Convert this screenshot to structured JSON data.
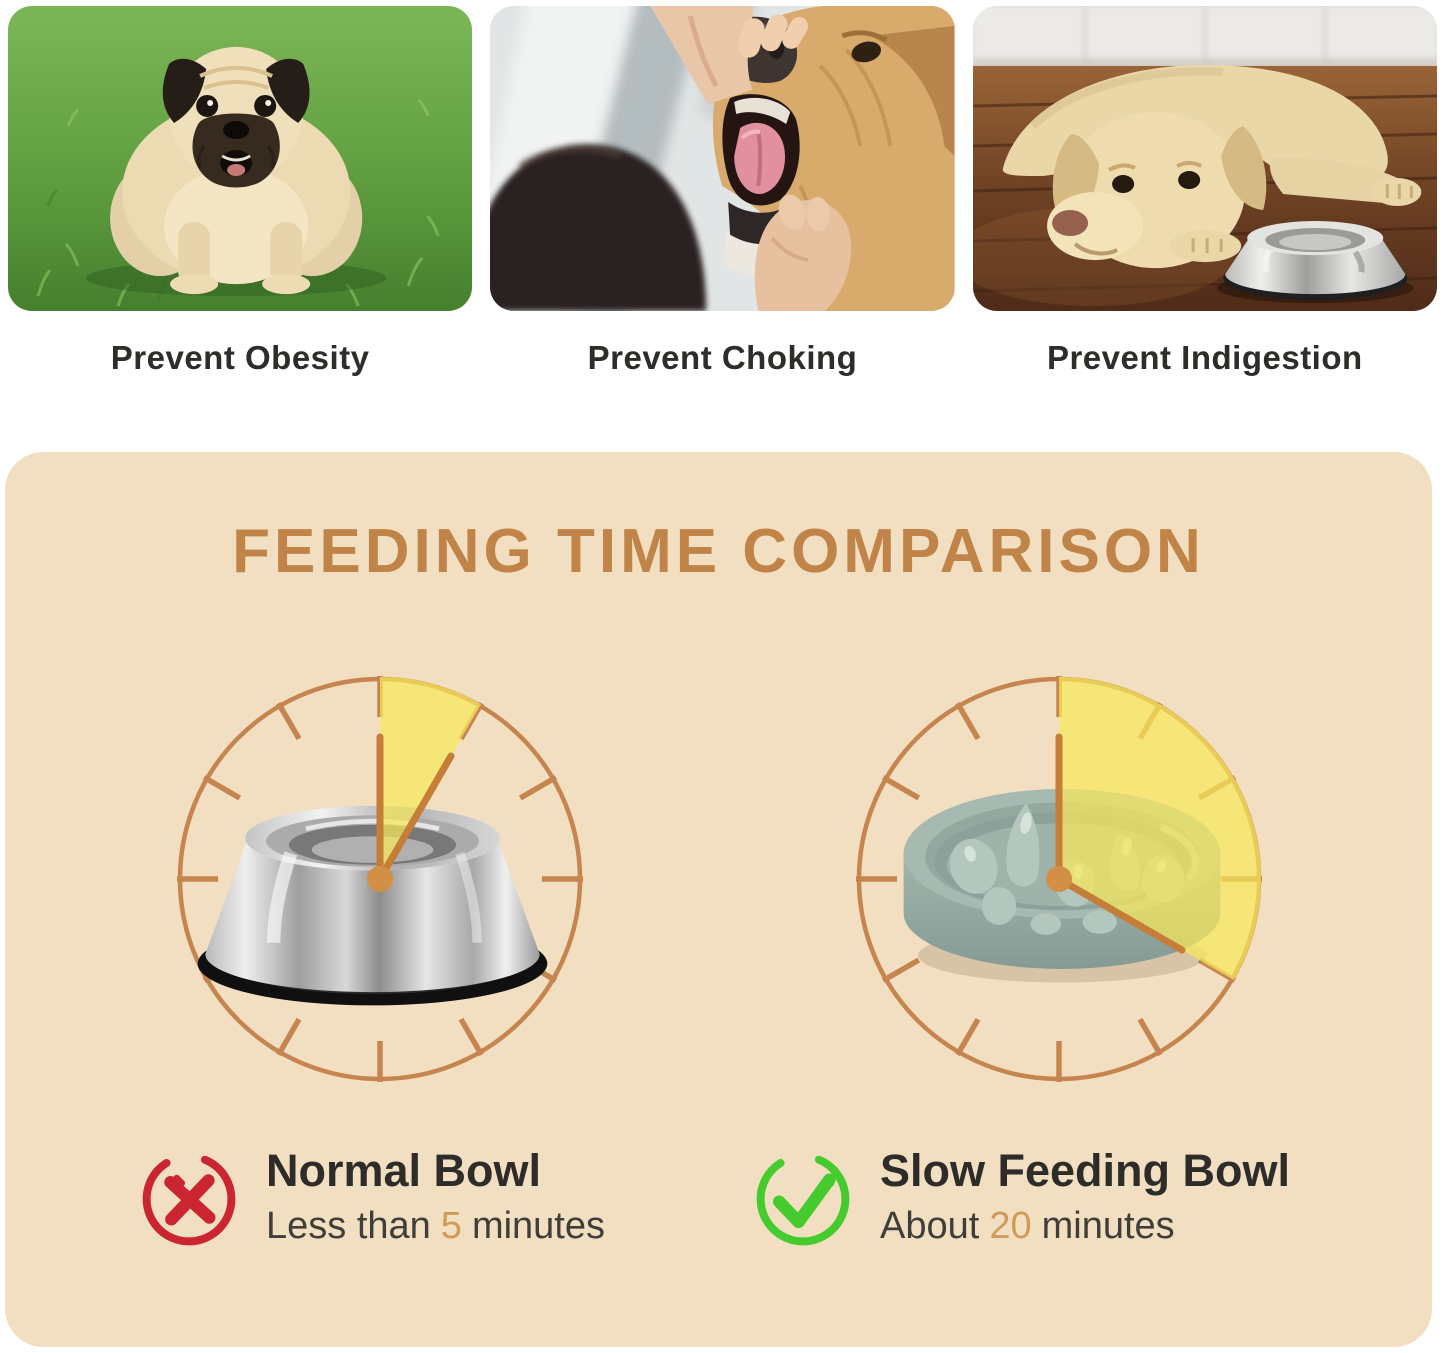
{
  "benefits": [
    {
      "label": "Prevent Obesity",
      "alt": "overweight pug standing on green grass"
    },
    {
      "label": "Prevent Choking",
      "alt": "owner holding open a golden retriever's mouth"
    },
    {
      "label": "Prevent Indigestion",
      "alt": "labrador lying on wooden floor beside a steel bowl"
    }
  ],
  "comparison": {
    "title": "FEEDING TIME COMPARISON",
    "panel_color": "#f2dfc2",
    "title_color": "#c08448",
    "clock_color": "#c6854e",
    "hand_color": "#c57d38",
    "dot_color": "#d38f46",
    "wedge_color": "rgba(247,231,90,0.72)",
    "highlight_color": "#cf9b59",
    "items": [
      {
        "icon": "cross-icon",
        "icon_color": "#cb2531",
        "name": "Normal Bowl",
        "time_prefix": "Less than",
        "time_value": "5",
        "time_suffix": "minutes",
        "minutes": 5,
        "bowl": "stainless steel bowl"
      },
      {
        "icon": "check-icon",
        "icon_color": "#45cb2e",
        "name": "Slow Feeding Bowl",
        "time_prefix": "About",
        "time_value": "20",
        "time_suffix": "minutes",
        "minutes": 20,
        "bowl": "slow feeder maze bowl"
      }
    ]
  }
}
